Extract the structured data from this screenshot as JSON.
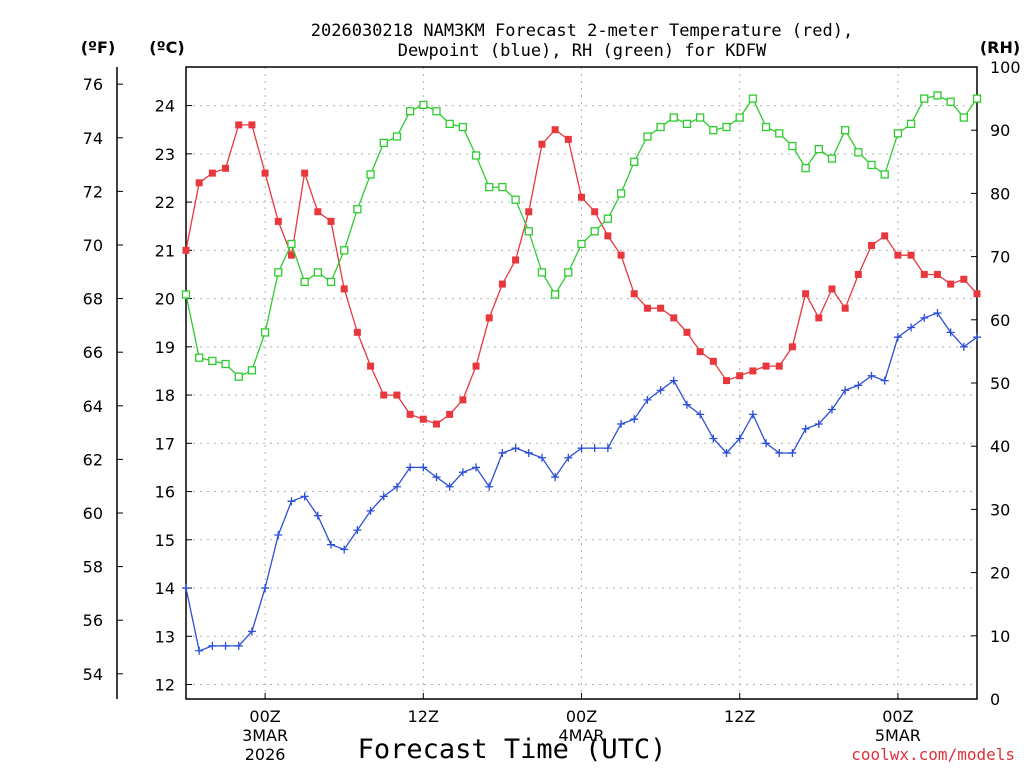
{
  "title_line1": "2026030218 NAM3KM Forecast 2-meter Temperature (red),",
  "title_line2": "Dewpoint (blue), RH (green) for KDFW",
  "unit_f": "(ºF)",
  "unit_c": "(ºC)",
  "unit_rh": "(RH)",
  "xlabel": "Forecast Time (UTC)",
  "credit": "coolwx.com/models",
  "colors": {
    "temperature": "#e8383d",
    "dewpoint": "#2b4fd8",
    "rh": "#2ecc2e",
    "grid": "#b0b0b0"
  },
  "chart_data": {
    "type": "line",
    "x_unit": "forecast hour",
    "x_range": [
      0,
      60
    ],
    "ylim_c": [
      11.7,
      24.8
    ],
    "ylim_f": [
      53.06,
      76.64
    ],
    "ylim_rh": [
      0,
      100
    ],
    "fahrenheit_ticks": [
      "54",
      "56",
      "58",
      "60",
      "62",
      "64",
      "66",
      "68",
      "70",
      "72",
      "74",
      "76"
    ],
    "celsius_ticks": [
      "12",
      "13",
      "14",
      "15",
      "16",
      "17",
      "18",
      "19",
      "20",
      "21",
      "22",
      "23",
      "24"
    ],
    "rh_ticks": [
      "0",
      "10",
      "20",
      "30",
      "40",
      "50",
      "60",
      "70",
      "80",
      "90",
      "100"
    ],
    "x_ticks": [
      {
        "hour": 6,
        "line1": "00Z",
        "line2": "3MAR",
        "line3": "2026"
      },
      {
        "hour": 18,
        "line1": "12Z",
        "line2": "",
        "line3": ""
      },
      {
        "hour": 30,
        "line1": "00Z",
        "line2": "4MAR",
        "line3": ""
      },
      {
        "hour": 42,
        "line1": "12Z",
        "line2": "",
        "line3": ""
      },
      {
        "hour": 54,
        "line1": "00Z",
        "line2": "5MAR",
        "line3": ""
      }
    ],
    "series": [
      {
        "key": "temperature",
        "axis": "celsius",
        "values": [
          21.0,
          22.4,
          22.6,
          22.7,
          23.6,
          23.6,
          22.6,
          21.6,
          20.9,
          22.6,
          21.8,
          21.6,
          20.2,
          19.3,
          18.6,
          18.0,
          18.0,
          17.6,
          17.5,
          17.4,
          17.6,
          17.9,
          18.6,
          19.6,
          20.3,
          20.8,
          21.8,
          23.2,
          23.5,
          23.3,
          22.1,
          21.8,
          21.3,
          20.9,
          20.1,
          19.8,
          19.8,
          19.6,
          19.3,
          18.9,
          18.7,
          18.3,
          18.4,
          18.5,
          18.6,
          18.6,
          19.0,
          20.1,
          19.6,
          20.2,
          19.8,
          20.5,
          21.1,
          21.3,
          20.9,
          20.9,
          20.5,
          20.5,
          20.3,
          20.4,
          20.1
        ]
      },
      {
        "key": "dewpoint",
        "axis": "celsius",
        "values": [
          14.0,
          12.7,
          12.8,
          12.8,
          12.8,
          13.1,
          14.0,
          15.1,
          15.8,
          15.9,
          15.5,
          14.9,
          14.8,
          15.2,
          15.6,
          15.9,
          16.1,
          16.5,
          16.5,
          16.3,
          16.1,
          16.4,
          16.5,
          16.1,
          16.8,
          16.9,
          16.8,
          16.7,
          16.3,
          16.7,
          16.9,
          16.9,
          16.9,
          17.4,
          17.5,
          17.9,
          18.1,
          18.3,
          17.8,
          17.6,
          17.1,
          16.8,
          17.1,
          17.6,
          17.0,
          16.8,
          16.8,
          17.3,
          17.4,
          17.7,
          18.1,
          18.2,
          18.4,
          18.3,
          19.2,
          19.4,
          19.6,
          19.7,
          19.3,
          19.0,
          19.2
        ]
      },
      {
        "key": "rh",
        "axis": "rh",
        "values": [
          64,
          54,
          53.5,
          53,
          51,
          52,
          58,
          67.5,
          72,
          66,
          67.5,
          66,
          71,
          77.5,
          83,
          88,
          89,
          93,
          94,
          93,
          91,
          90.5,
          86,
          81,
          81,
          79,
          74,
          67.5,
          64,
          67.5,
          72,
          74,
          76,
          80,
          85,
          89,
          90.5,
          92,
          91,
          92,
          90,
          90.5,
          92,
          95,
          90.5,
          89.5,
          87.5,
          84,
          87,
          85.5,
          90,
          86.5,
          84.5,
          83,
          89.5,
          91,
          95,
          95.5,
          94.5,
          92,
          95
        ]
      }
    ]
  }
}
